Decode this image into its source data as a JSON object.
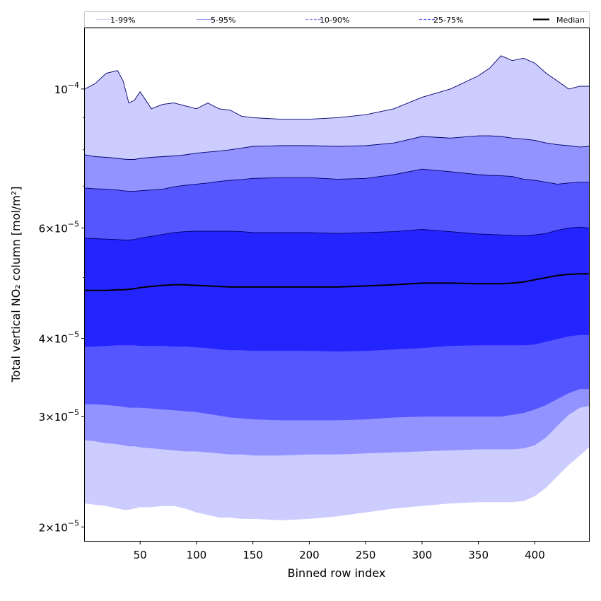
{
  "chart_data": {
    "type": "area",
    "xlabel": "Binned row index",
    "ylabel": "Total vertical NO₂ column [mol/m²]",
    "xlim": [
      1,
      448
    ],
    "ylim": [
      1.9e-05,
      0.000125
    ],
    "y_scale": "log",
    "x_ticks": [
      50,
      100,
      150,
      200,
      250,
      300,
      350,
      400
    ],
    "x_tick_labels": [
      "50",
      "100",
      "150",
      "200",
      "250",
      "300",
      "350",
      "400"
    ],
    "y_ticks": [
      2e-05,
      3e-05,
      4e-05,
      6e-05,
      0.0001
    ],
    "y_tick_labels": [
      {
        "mantissa": "2",
        "exponent": "−5"
      },
      {
        "mantissa": "3",
        "exponent": "−5"
      },
      {
        "mantissa": "4",
        "exponent": "−5"
      },
      {
        "mantissa": "6",
        "exponent": "−5"
      },
      {
        "mantissa": "",
        "exponent": "−4"
      }
    ],
    "legend_position": "top",
    "legend": [
      {
        "label": "1-99%",
        "color": "#d4d4fb",
        "style": "solid"
      },
      {
        "label": "5-95%",
        "color": "#9f9ff2",
        "style": "solid"
      },
      {
        "label": "10-90%",
        "color": "#8a8af2",
        "style": "dashed"
      },
      {
        "label": "25-75%",
        "color": "#5c5cf0",
        "style": "dashed"
      },
      {
        "label": "Median",
        "color": "#000000",
        "style": "solid"
      }
    ],
    "band_colors": [
      "#ccccff",
      "#9393ff",
      "#5656ff",
      "#2424ff"
    ],
    "x": [
      1,
      10,
      20,
      30,
      35,
      40,
      45,
      50,
      60,
      70,
      80,
      90,
      100,
      110,
      120,
      130,
      140,
      150,
      175,
      200,
      225,
      250,
      275,
      300,
      325,
      350,
      360,
      370,
      380,
      390,
      400,
      410,
      420,
      430,
      440,
      448
    ],
    "series": [
      {
        "name": "p99",
        "values": [
          0.0001,
          0.000102,
          0.000106,
          0.000107,
          0.000103,
          9.5e-05,
          9.6e-05,
          9.9e-05,
          9.3e-05,
          9.45e-05,
          9.5e-05,
          9.4e-05,
          9.3e-05,
          9.5e-05,
          9.3e-05,
          9.25e-05,
          9.05e-05,
          9e-05,
          8.95e-05,
          8.95e-05,
          9e-05,
          9.1e-05,
          9.3e-05,
          9.7e-05,
          0.0001,
          0.000105,
          0.000108,
          0.000113,
          0.000111,
          0.000112,
          0.00011,
          0.000106,
          0.000103,
          0.0001,
          0.000101,
          0.000101
        ]
      },
      {
        "name": "p95",
        "values": [
          7.85e-05,
          7.8e-05,
          7.78e-05,
          7.75e-05,
          7.73e-05,
          7.72e-05,
          7.72e-05,
          7.75e-05,
          7.78e-05,
          7.8e-05,
          7.82e-05,
          7.85e-05,
          7.9e-05,
          7.93e-05,
          7.96e-05,
          8e-05,
          8.05e-05,
          8.1e-05,
          8.12e-05,
          8.12e-05,
          8.1e-05,
          8.12e-05,
          8.2e-05,
          8.4e-05,
          8.35e-05,
          8.42e-05,
          8.42e-05,
          8.4e-05,
          8.35e-05,
          8.32e-05,
          8.28e-05,
          8.2e-05,
          8.15e-05,
          8.12e-05,
          8.08e-05,
          8.1e-05
        ]
      },
      {
        "name": "p90",
        "values": [
          6.95e-05,
          6.93e-05,
          6.92e-05,
          6.9e-05,
          6.88e-05,
          6.87e-05,
          6.87e-05,
          6.88e-05,
          6.9e-05,
          6.92e-05,
          6.98e-05,
          7.02e-05,
          7.05e-05,
          7.08e-05,
          7.12e-05,
          7.15e-05,
          7.17e-05,
          7.2e-05,
          7.22e-05,
          7.22e-05,
          7.18e-05,
          7.2e-05,
          7.3e-05,
          7.45e-05,
          7.38e-05,
          7.3e-05,
          7.28e-05,
          7.27e-05,
          7.25e-05,
          7.18e-05,
          7.15e-05,
          7.1e-05,
          7.05e-05,
          7.08e-05,
          7.1e-05,
          7.1e-05
        ]
      },
      {
        "name": "p75",
        "values": [
          5.78e-05,
          5.77e-05,
          5.76e-05,
          5.75e-05,
          5.74e-05,
          5.74e-05,
          5.75e-05,
          5.78e-05,
          5.82e-05,
          5.86e-05,
          5.9e-05,
          5.92e-05,
          5.93e-05,
          5.93e-05,
          5.93e-05,
          5.93e-05,
          5.92e-05,
          5.9e-05,
          5.9e-05,
          5.9e-05,
          5.88e-05,
          5.9e-05,
          5.92e-05,
          5.97e-05,
          5.92e-05,
          5.87e-05,
          5.86e-05,
          5.85e-05,
          5.84e-05,
          5.83e-05,
          5.85e-05,
          5.88e-05,
          5.95e-05,
          6e-05,
          6.02e-05,
          6e-05
        ]
      },
      {
        "name": "p50",
        "values": [
          4.77e-05,
          4.77e-05,
          4.77e-05,
          4.78e-05,
          4.78e-05,
          4.79e-05,
          4.8e-05,
          4.82e-05,
          4.84e-05,
          4.86e-05,
          4.87e-05,
          4.87e-05,
          4.86e-05,
          4.85e-05,
          4.84e-05,
          4.83e-05,
          4.83e-05,
          4.83e-05,
          4.83e-05,
          4.83e-05,
          4.83e-05,
          4.85e-05,
          4.87e-05,
          4.9e-05,
          4.9e-05,
          4.89e-05,
          4.89e-05,
          4.89e-05,
          4.9e-05,
          4.92e-05,
          4.96e-05,
          5e-05,
          5.04e-05,
          5.06e-05,
          5.07e-05,
          5.07e-05
        ]
      },
      {
        "name": "p25",
        "values": [
          3.88e-05,
          3.88e-05,
          3.89e-05,
          3.9e-05,
          3.9e-05,
          3.9e-05,
          3.9e-05,
          3.89e-05,
          3.89e-05,
          3.89e-05,
          3.88e-05,
          3.88e-05,
          3.87e-05,
          3.86e-05,
          3.84e-05,
          3.83e-05,
          3.83e-05,
          3.82e-05,
          3.82e-05,
          3.82e-05,
          3.81e-05,
          3.82e-05,
          3.84e-05,
          3.86e-05,
          3.89e-05,
          3.9e-05,
          3.9e-05,
          3.9e-05,
          3.9e-05,
          3.9e-05,
          3.91e-05,
          3.95e-05,
          3.99e-05,
          4.03e-05,
          4.05e-05,
          4.05e-05
        ]
      },
      {
        "name": "p10",
        "values": [
          3.14e-05,
          3.14e-05,
          3.13e-05,
          3.12e-05,
          3.11e-05,
          3.1e-05,
          3.1e-05,
          3.1e-05,
          3.09e-05,
          3.08e-05,
          3.07e-05,
          3.06e-05,
          3.05e-05,
          3.03e-05,
          3.01e-05,
          2.99e-05,
          2.98e-05,
          2.97e-05,
          2.96e-05,
          2.96e-05,
          2.96e-05,
          2.97e-05,
          2.99e-05,
          3e-05,
          3e-05,
          3e-05,
          3e-05,
          3e-05,
          3.02e-05,
          3.04e-05,
          3.08e-05,
          3.13e-05,
          3.2e-05,
          3.27e-05,
          3.32e-05,
          3.32e-05
        ]
      },
      {
        "name": "p5",
        "values": [
          2.75e-05,
          2.74e-05,
          2.72e-05,
          2.71e-05,
          2.7e-05,
          2.69e-05,
          2.69e-05,
          2.68e-05,
          2.67e-05,
          2.66e-05,
          2.65e-05,
          2.64e-05,
          2.64e-05,
          2.63e-05,
          2.62e-05,
          2.61e-05,
          2.61e-05,
          2.6e-05,
          2.6e-05,
          2.61e-05,
          2.61e-05,
          2.62e-05,
          2.63e-05,
          2.64e-05,
          2.65e-05,
          2.66e-05,
          2.66e-05,
          2.66e-05,
          2.66e-05,
          2.67e-05,
          2.7e-05,
          2.78e-05,
          2.9e-05,
          3.02e-05,
          3.1e-05,
          3.12e-05
        ]
      },
      {
        "name": "p1",
        "values": [
          2.18e-05,
          2.17e-05,
          2.16e-05,
          2.14e-05,
          2.13e-05,
          2.13e-05,
          2.14e-05,
          2.15e-05,
          2.15e-05,
          2.16e-05,
          2.16e-05,
          2.14e-05,
          2.11e-05,
          2.09e-05,
          2.07e-05,
          2.07e-05,
          2.06e-05,
          2.06e-05,
          2.05e-05,
          2.06e-05,
          2.08e-05,
          2.11e-05,
          2.14e-05,
          2.16e-05,
          2.18e-05,
          2.19e-05,
          2.19e-05,
          2.19e-05,
          2.19e-05,
          2.2e-05,
          2.24e-05,
          2.31e-05,
          2.41e-05,
          2.51e-05,
          2.6e-05,
          2.68e-05
        ]
      }
    ]
  }
}
